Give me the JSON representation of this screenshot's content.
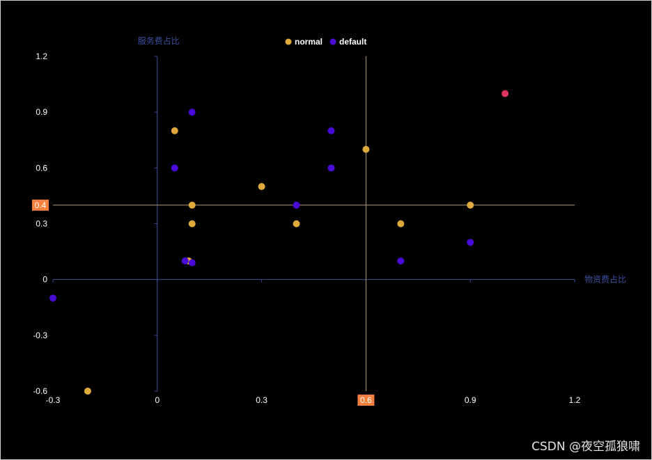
{
  "chart_data": {
    "type": "scatter",
    "title": "",
    "xlabel": "物资费占比",
    "ylabel": "服务费占比",
    "xlim": [
      -0.3,
      1.2
    ],
    "ylim": [
      -0.6,
      1.2
    ],
    "x_ticks": [
      "-0.3",
      "0",
      "0.3",
      "0.6",
      "0.9",
      "1.2"
    ],
    "y_ticks": [
      "-0.6",
      "-0.3",
      "0",
      "0.3",
      "0.6",
      "0.9",
      "1.2"
    ],
    "legend_position": "top-center",
    "series": [
      {
        "name": "normal",
        "color": "#e0a93b",
        "points": [
          [
            0.05,
            0.8
          ],
          [
            0.6,
            0.7
          ],
          [
            0.3,
            0.5
          ],
          [
            0.1,
            0.4
          ],
          [
            0.9,
            0.4
          ],
          [
            0.1,
            0.3
          ],
          [
            0.4,
            0.3
          ],
          [
            0.7,
            0.3
          ],
          [
            0.09,
            0.1
          ],
          [
            -0.2,
            -0.6
          ]
        ]
      },
      {
        "name": "default",
        "color": "#4b0bd6",
        "points": [
          [
            0.1,
            0.9
          ],
          [
            0.5,
            0.8
          ],
          [
            0.05,
            0.6
          ],
          [
            0.5,
            0.6
          ],
          [
            0.4,
            0.4
          ],
          [
            0.9,
            0.2
          ],
          [
            0.08,
            0.1
          ],
          [
            0.1,
            0.09
          ],
          [
            0.7,
            0.1
          ],
          [
            -0.3,
            -0.1
          ]
        ]
      }
    ],
    "highlight_point": {
      "x": 1.0,
      "y": 1.0,
      "color": "#e0335e"
    },
    "mark_lines": {
      "x": {
        "value": 0.6,
        "label": "0.6"
      },
      "y": {
        "value": 0.4,
        "label": "0.4"
      },
      "color": "#b59a7c",
      "label_bg": "#f57f3d"
    },
    "axis_color": "#3b4fa0"
  },
  "watermark": "CSDN @夜空孤狼啸"
}
